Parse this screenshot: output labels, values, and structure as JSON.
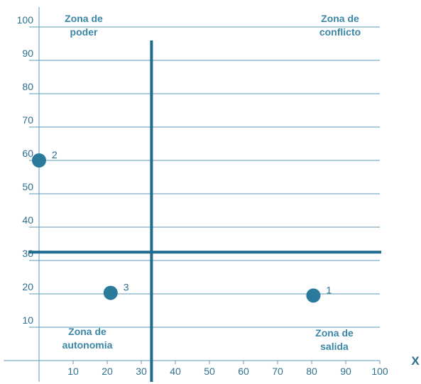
{
  "chart_data": {
    "type": "scatter",
    "xlabel": "X",
    "ylabel": "",
    "xlim": [
      0,
      100
    ],
    "ylim": [
      0,
      100
    ],
    "x_ticks": [
      10,
      20,
      30,
      40,
      50,
      60,
      70,
      80,
      90,
      100
    ],
    "y_ticks": [
      10,
      20,
      30,
      40,
      50,
      60,
      70,
      80,
      90,
      100
    ],
    "grid": "horizontal",
    "points": [
      {
        "label": "1",
        "x": 80.5,
        "y": 19.5
      },
      {
        "label": "2",
        "x": 0,
        "y": 60
      },
      {
        "label": "3",
        "x": 21,
        "y": 20.3
      }
    ],
    "divider_x": 33,
    "divider_y": 32.5,
    "zones": [
      {
        "lines": [
          "Zona de",
          "poder"
        ],
        "corner": "top-left"
      },
      {
        "lines": [
          "Zona de",
          "conflicto"
        ],
        "corner": "top-right"
      },
      {
        "lines": [
          "Zona de",
          "autonomia"
        ],
        "corner": "bottom-left"
      },
      {
        "lines": [
          "Zona de",
          "salida"
        ],
        "corner": "bottom-right"
      }
    ],
    "colors": {
      "grid": "#5b9bb8",
      "axis": "#2e6f8e",
      "divider": "#1f6a8f",
      "point": "#2a7b9b",
      "text": "#2e6f8e"
    }
  }
}
